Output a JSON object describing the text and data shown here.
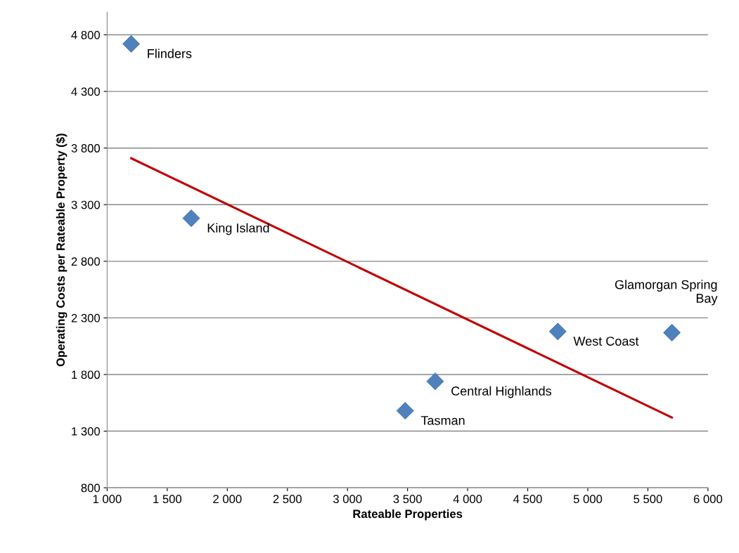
{
  "chart_data": {
    "type": "scatter",
    "xlabel": "Rateable Properties",
    "ylabel": "Operating Costs per Rateable Property ($)",
    "series": [
      {
        "color": "#4f81bd",
        "marker": "diamond",
        "x": [
          1200,
          1700,
          3480,
          3730,
          4750,
          5700
        ],
        "values": [
          4720,
          3180,
          1480,
          1740,
          2180,
          2170
        ]
      },
      {
        "type": "line",
        "color": "#c00000",
        "line_style": "solid",
        "x": [
          1200,
          5700
        ],
        "values": [
          3710,
          1420
        ]
      }
    ],
    "annotations": [
      {
        "text": "Flinders",
        "x": 1200,
        "y": 4720
      },
      {
        "text": "King Island",
        "x": 1700,
        "y": 3180
      },
      {
        "text": "Tasman",
        "x": 3480,
        "y": 1480
      },
      {
        "text": "Central Highlands",
        "x": 3730,
        "y": 1740
      },
      {
        "text": "West Coast",
        "x": 4750,
        "y": 2180
      },
      {
        "text": "Glamorgan Spring\nBay",
        "x": 5700,
        "y": 2170
      }
    ],
    "xlim": [
      1000,
      6000
    ],
    "xticks": [
      {
        "value": 1000,
        "label": "1 000"
      },
      {
        "value": 1500,
        "label": "1 500"
      },
      {
        "value": 2000,
        "label": "2 000"
      },
      {
        "value": 2500,
        "label": "2 500"
      },
      {
        "value": 3000,
        "label": "3 000"
      },
      {
        "value": 3500,
        "label": "3 500"
      },
      {
        "value": 4000,
        "label": "4 000"
      },
      {
        "value": 4500,
        "label": "4 500"
      },
      {
        "value": 5000,
        "label": "5 000"
      },
      {
        "value": 5500,
        "label": "5 500"
      },
      {
        "value": 6000,
        "label": "6 000"
      }
    ],
    "ylim": [
      800,
      5000
    ],
    "yticks": [
      800,
      {
        "value": 1300,
        "label": "1 300"
      },
      {
        "value": 1800,
        "label": "1 800"
      },
      {
        "value": 2300,
        "label": "2 300"
      },
      {
        "value": 2800,
        "label": "2 800"
      },
      {
        "value": 3300,
        "label": "3 300"
      },
      {
        "value": 3800,
        "label": "3 800"
      },
      {
        "value": 4300,
        "label": "4 300"
      },
      {
        "value": 4800,
        "label": "4 800"
      }
    ],
    "grid": "y",
    "legend": false
  }
}
